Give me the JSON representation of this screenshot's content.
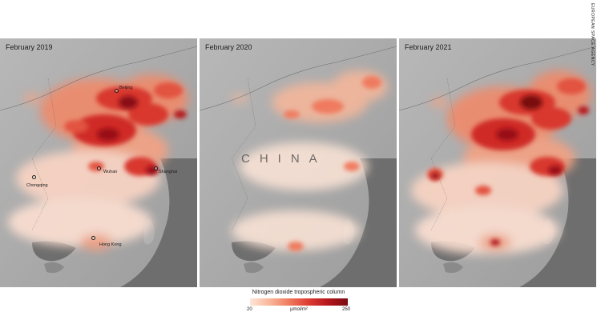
{
  "panels": [
    {
      "title": "February 2019",
      "level": "high"
    },
    {
      "title": "February 2020",
      "level": "low"
    },
    {
      "title": "February 2021",
      "level": "high"
    }
  ],
  "cities": {
    "beijing": "Beijing",
    "wuhan": "Wuhan",
    "shanghai": "Shanghai",
    "chongqing": "Chongqing",
    "hong_kong": "Hong Kong"
  },
  "country_label": "CHINA",
  "credit": "EUROPEAN SPACE AGENCY",
  "legend": {
    "title": "Nitrogen dioxide tropospheric column",
    "min": "20",
    "max": "250",
    "unit": "µmol/m²"
  },
  "colors": {
    "low": "#fde5d7",
    "mid": "#ef7a5e",
    "high": "#b3151b",
    "max": "#7a0b10",
    "sea": "#6e6e6e",
    "land": "#a9a9a9"
  }
}
